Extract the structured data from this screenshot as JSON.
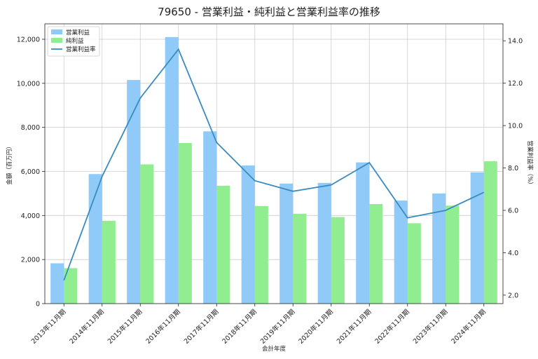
{
  "chart_data": {
    "type": "bar",
    "title": "79650 - 営業利益・純利益と営業利益率の推移",
    "xlabel": "会計年度",
    "ylabel": "金額（百万円）",
    "y2label": "営業利益率（%）",
    "categories": [
      "2013年11月期",
      "2014年11月期",
      "2015年11月期",
      "2016年11月期",
      "2017年11月期",
      "2018年11月期",
      "2019年11月期",
      "2020年11月期",
      "2021年11月期",
      "2022年11月期",
      "2023年11月期",
      "2024年11月期"
    ],
    "series": [
      {
        "name": "営業利益",
        "type": "bar",
        "axis": "left",
        "color": "#90caf9",
        "values": [
          1830,
          5880,
          10150,
          12100,
          7820,
          6270,
          5450,
          5480,
          6410,
          4680,
          5000,
          5960
        ]
      },
      {
        "name": "純利益",
        "type": "bar",
        "axis": "left",
        "color": "#90ee90",
        "values": [
          1610,
          3760,
          6320,
          7290,
          5350,
          4430,
          4080,
          3930,
          4520,
          3650,
          4450,
          6460
        ]
      },
      {
        "name": "営業利益率",
        "type": "line",
        "axis": "right",
        "color": "#3a8bc0",
        "values": [
          2.7,
          7.6,
          11.3,
          13.6,
          9.2,
          7.4,
          6.9,
          7.2,
          8.25,
          5.65,
          6.0,
          6.85
        ]
      }
    ],
    "ylim": [
      0,
      12700
    ],
    "y2lim": [
      1.6,
      14.8
    ],
    "yticks": [
      0,
      2000,
      4000,
      6000,
      8000,
      10000,
      12000
    ],
    "yticklabels": [
      "0",
      "2,000",
      "4,000",
      "6,000",
      "8,000",
      "10,000",
      "12,000"
    ],
    "y2ticks": [
      2.0,
      4.0,
      6.0,
      8.0,
      10.0,
      12.0,
      14.0
    ],
    "y2ticklabels": [
      "2.0",
      "4.0",
      "6.0",
      "8.0",
      "10.0",
      "12.0",
      "14.0"
    ],
    "grid": true,
    "legend": "top-left"
  }
}
